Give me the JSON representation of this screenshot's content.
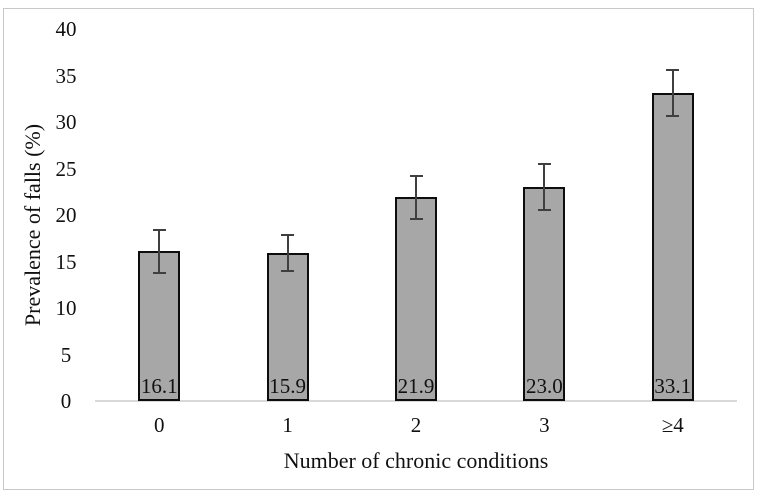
{
  "figure": {
    "background_color": "#ffffff",
    "frame_border_color": "#c8c8c8"
  },
  "chart_data": {
    "type": "bar",
    "title": "",
    "xlabel": "Number of chronic conditions",
    "ylabel": "Prevalence of falls (%)",
    "categories": [
      "0",
      "1",
      "2",
      "3",
      "≥4"
    ],
    "values": [
      16.1,
      15.9,
      21.9,
      23.0,
      33.1
    ],
    "value_labels": [
      "16.1",
      "15.9",
      "21.9",
      "23.0",
      "33.1"
    ],
    "error_bars_plus_minus": [
      2.3,
      1.9,
      2.3,
      2.5,
      2.5
    ],
    "y_ticks": [
      "0",
      "5",
      "10",
      "15",
      "20",
      "25",
      "30",
      "35",
      "40"
    ],
    "ylim": [
      0,
      40
    ],
    "grid": false,
    "legend": false,
    "bar_fill_color": "#a7a7a7",
    "bar_border_color": "#0d0d0d",
    "error_bar_color": "#3f3f3f",
    "axis_line_color": "#d9d9d9"
  }
}
